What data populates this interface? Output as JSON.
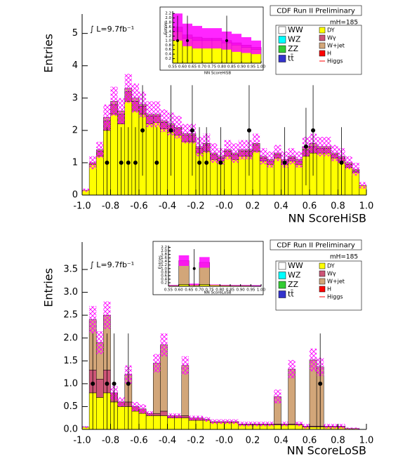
{
  "chart_data": [
    {
      "type": "histogram",
      "title": "CDF Run II Preliminary",
      "xlabel": "NN ScoreHiSB",
      "ylabel": "Entries",
      "annotation": "∫ L=9.7fb⁻¹",
      "mass_label": "mH=185",
      "bins": [
        -1.0,
        -0.95,
        -0.9,
        -0.85,
        -0.8,
        -0.75,
        -0.7,
        -0.65,
        -0.6,
        -0.55,
        -0.5,
        -0.45,
        -0.4,
        -0.35,
        -0.3,
        -0.25,
        -0.2,
        -0.15,
        -0.1,
        -0.05,
        0.0,
        0.05,
        0.1,
        0.15,
        0.2,
        0.25,
        0.3,
        0.35,
        0.4,
        0.45,
        0.5,
        0.55,
        0.6,
        0.65,
        0.7,
        0.75,
        0.8,
        0.85,
        0.9,
        0.95,
        1.0
      ],
      "series": [
        {
          "name": "DY",
          "color": "#ffff00",
          "values": [
            0.15,
            0.95,
            1.2,
            2.0,
            2.5,
            2.2,
            2.9,
            2.6,
            2.5,
            2.2,
            2.25,
            2.05,
            1.95,
            1.85,
            1.65,
            1.65,
            1.3,
            1.35,
            1.1,
            1.05,
            1.2,
            1.1,
            1.2,
            1.2,
            1.35,
            1.05,
            0.95,
            1.15,
            0.95,
            1.05,
            0.95,
            1.2,
            1.3,
            1.3,
            1.3,
            1.15,
            1.05,
            0.85,
            0.7,
            0.3
          ]
        },
        {
          "name": "Wγ",
          "color": "#cc5577",
          "values": [
            0,
            0.05,
            0.15,
            0.3,
            0.3,
            0.3,
            0.3,
            0.3,
            0.25,
            0.25,
            0.2,
            0.2,
            0.2,
            0.2,
            0.2,
            0.2,
            0.15,
            0.2,
            0.15,
            0.1,
            0.15,
            0.15,
            0.15,
            0.15,
            0.2,
            0.1,
            0.1,
            0.1,
            0.1,
            0.1,
            0.1,
            0.2,
            0.2,
            0.15,
            0.15,
            0.1,
            0.1,
            0.1,
            0.05,
            0
          ]
        },
        {
          "name": "W+jet",
          "color": "#d2a679",
          "values": [
            0,
            0,
            0.05,
            0.1,
            0.1,
            0.1,
            0.1,
            0.1,
            0.05,
            0.05,
            0.05,
            0.05,
            0.05,
            0.05,
            0.05,
            0.05,
            0.05,
            0.05,
            0.05,
            0.05,
            0.05,
            0.05,
            0.05,
            0.05,
            0.05,
            0.05,
            0.05,
            0.05,
            0.05,
            0.05,
            0.05,
            0.1,
            0.1,
            0.05,
            0.05,
            0.05,
            0.05,
            0.05,
            0.05,
            0
          ]
        }
      ],
      "band": [
        0.05,
        0.2,
        0.25,
        0.4,
        0.45,
        0.4,
        0.45,
        0.45,
        0.4,
        0.4,
        0.4,
        0.35,
        0.35,
        0.35,
        0.3,
        0.3,
        0.3,
        0.3,
        0.3,
        0.25,
        0.3,
        0.3,
        0.3,
        0.3,
        0.3,
        0.25,
        0.25,
        0.25,
        0.25,
        0.25,
        0.25,
        0.3,
        0.3,
        0.3,
        0.3,
        0.25,
        0.25,
        0.2,
        0.2,
        0.1
      ],
      "band_color": "#ff00ff",
      "band_fill": "hatch",
      "points": {
        "x": [
          -0.825,
          -0.725,
          -0.675,
          -0.625,
          -0.575,
          -0.475,
          -0.375,
          -0.225,
          -0.175,
          -0.125,
          -0.025,
          0.175,
          0.425,
          0.575,
          0.625,
          0.825
        ],
        "values": [
          1,
          1,
          1,
          1,
          2,
          1,
          2,
          2,
          1,
          1,
          1,
          2,
          1,
          1.5,
          2,
          1
        ],
        "errors": [
          1.1,
          1.1,
          1.1,
          1.1,
          1.4,
          1.1,
          1.4,
          1.4,
          1.1,
          1.1,
          1.1,
          1.4,
          1.1,
          1.2,
          1.4,
          1.1
        ]
      },
      "legend_extra": [
        {
          "name": "WW",
          "color": "#ffffff"
        },
        {
          "name": "WZ",
          "color": "#00ffff"
        },
        {
          "name": "ZZ",
          "color": "#33cc33"
        },
        {
          "name": "tt̄",
          "color": "#3333cc"
        },
        {
          "name": "H",
          "color": "#ff0000"
        },
        {
          "name": "Higgs",
          "color": "#ff0000"
        }
      ],
      "xlim": [
        -1.0,
        1.0
      ],
      "ylim": [
        0,
        5.6
      ],
      "xticks": [
        {
          "value": -1,
          "label": "-1.0"
        },
        -0.8,
        -0.6,
        -0.4,
        -0.2,
        {
          "value": 0,
          "label": "-0.0"
        },
        0.2,
        0.4,
        0.6,
        0.8,
        {
          "value": 1,
          "label": "1.0"
        }
      ],
      "yticks": [
        0,
        1,
        2,
        3,
        4,
        5
      ]
    },
    {
      "type": "histogram",
      "xlabel": "NN ScoreHiSB",
      "ylabel": "Entries",
      "bins": [
        0.55,
        0.6,
        0.65,
        0.7,
        0.75,
        0.8,
        0.85,
        0.9,
        0.95,
        1.0
      ],
      "series": [
        {
          "color": "#ffff00",
          "values": [
            1.4,
            1.1,
            1.0,
            1.0,
            1.0,
            0.9,
            0.8,
            0.7,
            0.6
          ]
        },
        {
          "color": "#cc5577",
          "values": [
            0.2,
            0.15,
            0.15,
            0.1,
            0.1,
            0.1,
            0.1,
            0.1,
            0.1
          ]
        }
      ],
      "band": [
        0.6,
        0.5,
        0.5,
        0.45,
        0.45,
        0.4,
        0.4,
        0.35,
        0.3
      ],
      "band_color": "#ff00ff",
      "band_fill": "solid",
      "points": {
        "x": [
          0.575,
          0.625,
          0.825
        ],
        "values": [
          1,
          1,
          1
        ],
        "errors": [
          1.1,
          1.1,
          1.1
        ]
      },
      "xlim": [
        0.55,
        1.0
      ],
      "ylim": [
        0,
        2.3
      ],
      "xticks": [
        0.55,
        {
          "value": 0.6,
          "label": "0.60"
        },
        0.65,
        {
          "value": 0.7,
          "label": "0.70"
        },
        0.75,
        {
          "value": 0.8,
          "label": "0.80"
        },
        0.85,
        {
          "value": 0.9,
          "label": "0.90"
        },
        0.95,
        {
          "value": 1,
          "label": "1.00"
        }
      ],
      "yticks": [
        0.2,
        0.4,
        0.6,
        0.8,
        {
          "value": 1,
          "label": "1.0"
        },
        1.2,
        1.4,
        1.6,
        1.8,
        {
          "value": 2,
          "label": "2.0"
        },
        2.2
      ]
    },
    {
      "type": "histogram",
      "title": "CDF Run II Preliminary",
      "xlabel": "NN ScoreLoSB",
      "ylabel": "Entries",
      "annotation": "∫ L=9.7fb⁻¹",
      "mass_label": "mH=185",
      "bins": [
        -1.0,
        -0.95,
        -0.9,
        -0.85,
        -0.8,
        -0.75,
        -0.7,
        -0.65,
        -0.6,
        -0.55,
        -0.5,
        -0.45,
        -0.4,
        -0.35,
        -0.3,
        -0.25,
        -0.2,
        -0.15,
        -0.1,
        -0.05,
        0.0,
        0.05,
        0.1,
        0.15,
        0.2,
        0.25,
        0.3,
        0.35,
        0.4,
        0.45,
        0.5,
        0.55,
        0.6,
        0.65,
        0.7,
        0.75,
        0.8,
        0.85,
        0.9,
        0.95,
        1.0
      ],
      "series": [
        {
          "name": "DY",
          "color": "#ffff00",
          "values": [
            0.05,
            0.8,
            0.7,
            0.8,
            0.6,
            0.5,
            0.5,
            0.4,
            0.35,
            0.3,
            0.3,
            0.3,
            0.25,
            0.25,
            0.25,
            0.2,
            0.2,
            0.2,
            0.15,
            0.15,
            0.15,
            0.15,
            0.1,
            0.1,
            0.1,
            0.1,
            0.1,
            0.1,
            0.1,
            0.1,
            0.1,
            0.05,
            0.05,
            0.05,
            0.05,
            0.05,
            0.05,
            0.02,
            0.02,
            0
          ]
        },
        {
          "name": "Wγ",
          "color": "#cc5577",
          "values": [
            0,
            0.5,
            0.4,
            0.5,
            0.2,
            0.1,
            0.1,
            0.1,
            0.1,
            0.05,
            0.05,
            0.1,
            0.05,
            0.05,
            0.05,
            0.05,
            0.05,
            0.02,
            0.02,
            0.02,
            0.02,
            0.02,
            0.02,
            0.02,
            0.02,
            0.02,
            0.02,
            0.02,
            0.02,
            0.02,
            0.02,
            0.02,
            0.02,
            0.02,
            0.02,
            0.02,
            0.02,
            0,
            0,
            0
          ]
        },
        {
          "name": "W+jet",
          "color": "#d2a679",
          "values": [
            0,
            1.1,
            0.8,
            1.2,
            0,
            0,
            0.6,
            0,
            0,
            0,
            1.1,
            1.45,
            0,
            0,
            1.1,
            0,
            0,
            0,
            0,
            0,
            0,
            0,
            0,
            0,
            0,
            0,
            0,
            0.6,
            0,
            1.2,
            0,
            0,
            1.45,
            1.3,
            0,
            0,
            0,
            0,
            0,
            0
          ]
        }
      ],
      "band": [
        0.02,
        0.3,
        0.25,
        0.3,
        0.15,
        0.1,
        0.2,
        0.1,
        0.1,
        0.05,
        0.2,
        0.25,
        0.05,
        0.05,
        0.2,
        0.05,
        0.05,
        0.05,
        0.05,
        0.05,
        0.05,
        0.05,
        0.05,
        0.05,
        0.05,
        0.05,
        0.05,
        0.15,
        0.05,
        0.2,
        0.05,
        0.05,
        0.25,
        0.2,
        0.05,
        0.05,
        0.05,
        0.02,
        0.02,
        0
      ],
      "band_color": "#ff00ff",
      "band_fill": "hatch",
      "points": {
        "x": [
          -0.925,
          -0.825,
          -0.775,
          -0.675,
          0.675
        ],
        "values": [
          1,
          1,
          1,
          1,
          1
        ],
        "errors": [
          1.1,
          1.1,
          1.1,
          1.1,
          1.1
        ]
      },
      "legend_extra": [
        {
          "name": "WW",
          "color": "#ffffff"
        },
        {
          "name": "WZ",
          "color": "#00ffff"
        },
        {
          "name": "ZZ",
          "color": "#33cc33"
        },
        {
          "name": "tt̄",
          "color": "#3333cc"
        },
        {
          "name": "H",
          "color": "#ff0000"
        },
        {
          "name": "Higgs",
          "color": "#ff0000"
        }
      ],
      "xlim": [
        -1.0,
        1.0
      ],
      "ylim": [
        0,
        4.1
      ],
      "xticks": [
        {
          "value": -1,
          "label": "-1.0"
        },
        -0.8,
        -0.6,
        -0.4,
        -0.2,
        {
          "value": 0,
          "label": "-0.0"
        },
        0.2,
        0.4,
        0.6,
        0.8,
        {
          "value": 1,
          "label": "1.0"
        }
      ],
      "yticks": [
        {
          "value": 0,
          "label": "0.0"
        },
        0.5,
        {
          "value": 1,
          "label": "1.0"
        },
        1.5,
        {
          "value": 2,
          "label": "2.0"
        },
        2.5,
        {
          "value": 3,
          "label": "3.0"
        },
        3.5
      ]
    },
    {
      "type": "histogram",
      "xlabel": "NN ScoreLoSB",
      "ylabel": "Entries",
      "bins": [
        0.55,
        0.6,
        0.65,
        0.7,
        0.75,
        0.8,
        0.85,
        0.9,
        0.95,
        1.0
      ],
      "series": [
        {
          "color": "#ffff00",
          "values": [
            0.05,
            0.1,
            0.1,
            0.1,
            0.08,
            0.06,
            0.05,
            0.05,
            0.04
          ]
        },
        {
          "color": "#d2a679",
          "values": [
            0,
            1.35,
            0,
            1.25,
            0,
            0,
            0,
            0,
            0
          ]
        }
      ],
      "band": [
        0.02,
        0.3,
        0.05,
        0.3,
        0.02,
        0.02,
        0.02,
        0.02,
        0.02
      ],
      "band_color": "#ff00ff",
      "band_fill": "solid",
      "points": {
        "x": [
          0.675
        ],
        "values": [
          1
        ],
        "errors": [
          1.1
        ]
      },
      "xlim": [
        0.55,
        1.0
      ],
      "ylim": [
        0,
        2.3
      ],
      "xticks": [
        0.55,
        {
          "value": 0.6,
          "label": "0.60"
        },
        0.65,
        {
          "value": 0.7,
          "label": "0.70"
        },
        0.75,
        {
          "value": 0.8,
          "label": "0.80"
        },
        0.85,
        {
          "value": 0.9,
          "label": "0.90"
        },
        0.95,
        {
          "value": 1,
          "label": "1.00"
        }
      ],
      "yticks": [
        0.2,
        0.4,
        0.6,
        0.8,
        {
          "value": 1,
          "label": "1.0"
        },
        1.2,
        1.4,
        1.6,
        1.8,
        {
          "value": 2,
          "label": "2.0"
        },
        2.2
      ]
    }
  ]
}
